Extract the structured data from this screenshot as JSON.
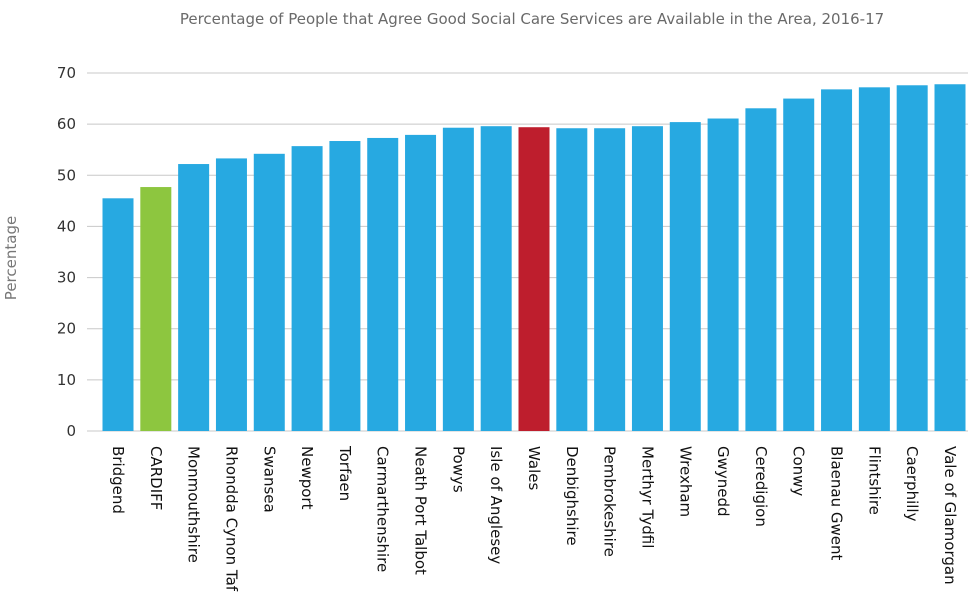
{
  "chart_data": {
    "type": "bar",
    "title": "Percentage of People that Agree Good Social Care Services are Available in the Area, 2016-17",
    "xlabel": "",
    "ylabel": "Percentage",
    "ylim": [
      0,
      70
    ],
    "yticks": [
      0,
      10,
      20,
      30,
      40,
      50,
      60,
      70
    ],
    "grid": true,
    "categories": [
      "Bridgend",
      "CARDIFF",
      "Monmouthshire",
      "Rhondda Cynon Taf",
      "Swansea",
      "Newport",
      "Torfaen",
      "Carmarthenshire",
      "Neath Port Talbot",
      "Powys",
      "Isle of Anglesey",
      "Wales",
      "Denbighshire",
      "Pembrokeshire",
      "Merthyr Tydfil",
      "Wrexham",
      "Gwynedd",
      "Ceredigion",
      "Conwy",
      "Blaenau Gwent",
      "Flintshire",
      "Caerphilly",
      "Vale of Glamorgan"
    ],
    "values": [
      45.5,
      47.7,
      52.2,
      53.3,
      54.2,
      55.7,
      56.7,
      57.3,
      57.9,
      59.3,
      59.6,
      59.4,
      59.2,
      59.2,
      59.6,
      60.4,
      61.1,
      63.1,
      65.0,
      66.8,
      67.2,
      67.6,
      67.8
    ],
    "colors": {
      "default": "#27a9e1",
      "CARDIFF": "#8dc63f",
      "Wales": "#be1e2d"
    }
  }
}
